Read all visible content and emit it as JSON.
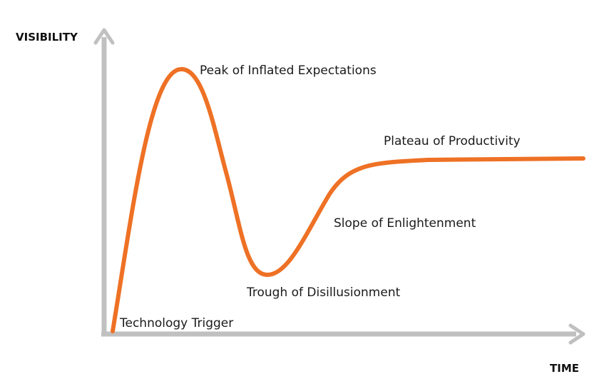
{
  "diagram": {
    "axes": {
      "y_label": "VISIBILITY",
      "x_label": "TIME",
      "color": "#c0c0c0"
    },
    "curve": {
      "color": "#ee7125"
    },
    "phases": [
      {
        "id": "technology-trigger",
        "label": "Technology Trigger"
      },
      {
        "id": "peak-of-inflated-expectations",
        "label": "Peak of Inflated Expectations"
      },
      {
        "id": "trough-of-disillusionment",
        "label": "Trough of Disillusionment"
      },
      {
        "id": "slope-of-enlightenment",
        "label": "Slope of Enlightenment"
      },
      {
        "id": "plateau-of-productivity",
        "label": "Plateau of Productivity"
      }
    ]
  }
}
